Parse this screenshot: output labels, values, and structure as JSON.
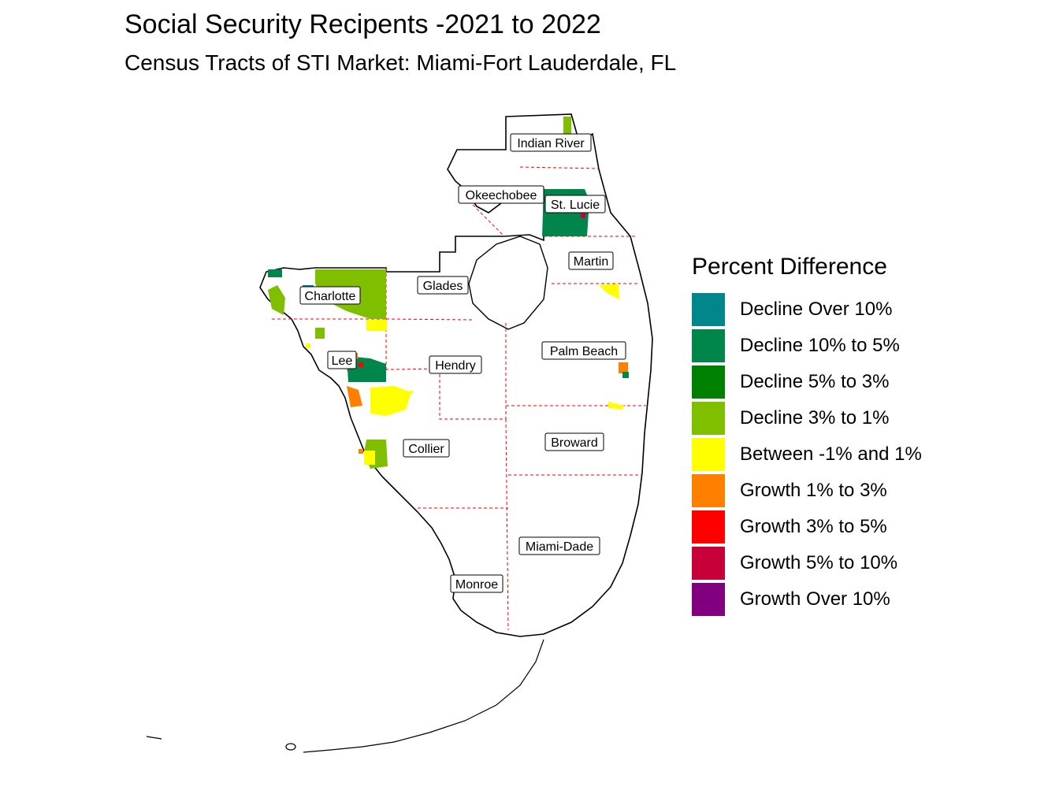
{
  "title": "Social Security Recipents -2021 to 2022",
  "subtitle": "Census Tracts of STI Market: Miami-Fort Lauderdale, FL",
  "legend": {
    "title": "Percent Difference",
    "items": [
      {
        "label": "Decline Over 10%",
        "color": "#00868B"
      },
      {
        "label": "Decline 10% to 5%",
        "color": "#00854A"
      },
      {
        "label": "Decline 5% to 3%",
        "color": "#008000"
      },
      {
        "label": "Decline 3% to 1%",
        "color": "#7FBF00"
      },
      {
        "label": "Between -1% and 1%",
        "color": "#FFFF00"
      },
      {
        "label": "Growth 1% to 3%",
        "color": "#FF8000"
      },
      {
        "label": "Growth 3% to 5%",
        "color": "#FF0000"
      },
      {
        "label": "Growth 5% to 10%",
        "color": "#C70039"
      },
      {
        "label": "Growth Over 10%",
        "color": "#800080"
      }
    ]
  },
  "counties": [
    {
      "name": "Indian River"
    },
    {
      "name": "Okeechobee"
    },
    {
      "name": "St. Lucie"
    },
    {
      "name": "Martin"
    },
    {
      "name": "Glades"
    },
    {
      "name": "Charlotte"
    },
    {
      "name": "Palm Beach"
    },
    {
      "name": "Lee"
    },
    {
      "name": "Hendry"
    },
    {
      "name": "Broward"
    },
    {
      "name": "Collier"
    },
    {
      "name": "Miami-Dade"
    },
    {
      "name": "Monroe"
    }
  ],
  "colors": {
    "outline": "#000000",
    "county_border": "#FF0000",
    "background": "#FFFFFF"
  }
}
